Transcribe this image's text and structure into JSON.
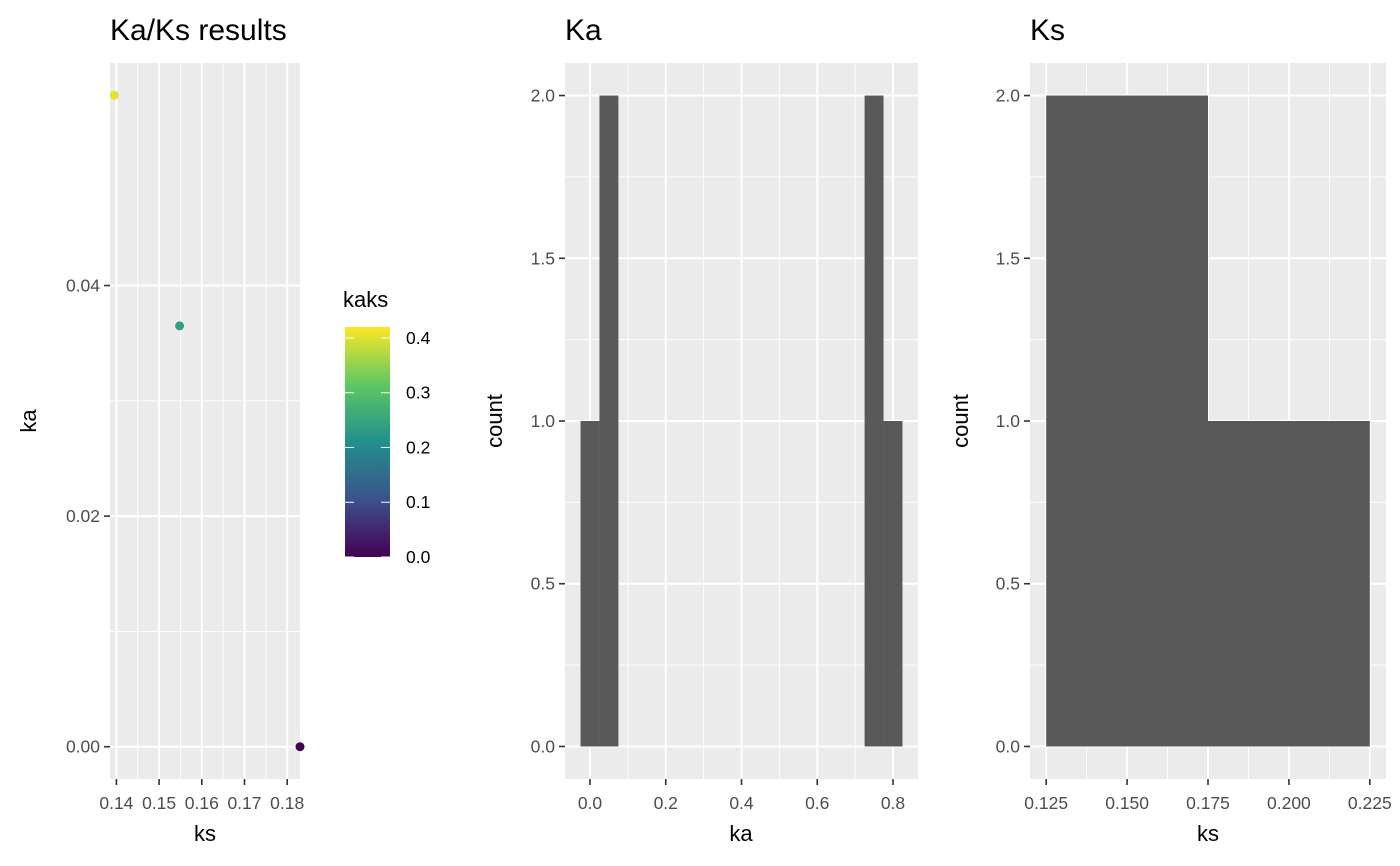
{
  "colors": {
    "panel_bg": "#EBEBEB",
    "grid_major": "#FFFFFF",
    "tick": "#333333",
    "bar_fill": "#595959",
    "viridis": [
      "#440154",
      "#3B528B",
      "#21908C",
      "#5DC863",
      "#FDE725"
    ]
  },
  "chart_data": [
    {
      "type": "scatter",
      "title": "Ka/Ks results",
      "xlabel": "ks",
      "ylabel": "ka",
      "xlim": [
        0.1385,
        0.183
      ],
      "ylim": [
        -0.0028,
        0.0593
      ],
      "xticks": [
        0.14,
        0.15,
        0.16,
        0.17,
        0.18
      ],
      "xtick_labels": [
        "0.14",
        "0.15",
        "0.16",
        "0.17",
        "0.18"
      ],
      "yticks": [
        0.0,
        0.02,
        0.04
      ],
      "ytick_labels": [
        "0.00",
        "0.02",
        "0.04"
      ],
      "points": [
        {
          "x": 0.1395,
          "y": 0.0565,
          "kaks": 0.405
        },
        {
          "x": 0.1548,
          "y": 0.0365,
          "kaks": 0.236
        },
        {
          "x": 0.183,
          "y": 0.0,
          "kaks": 0.0
        }
      ],
      "legend": {
        "title": "kaks",
        "placement": "right",
        "range": [
          0,
          0.42
        ],
        "ticks": [
          0.0,
          0.1,
          0.2,
          0.3,
          0.4
        ],
        "tick_labels": [
          "0.0",
          "0.1",
          "0.2",
          "0.3",
          "0.4"
        ]
      }
    },
    {
      "type": "bar",
      "title": "Ka",
      "xlabel": "ka",
      "ylabel": "count",
      "xlim": [
        -0.066,
        0.866
      ],
      "ylim": [
        -0.1,
        2.1
      ],
      "xticks": [
        0.0,
        0.2,
        0.4,
        0.6,
        0.8
      ],
      "xtick_labels": [
        "0.0",
        "0.2",
        "0.4",
        "0.6",
        "0.8"
      ],
      "yticks": [
        0.0,
        0.5,
        1.0,
        1.5,
        2.0
      ],
      "ytick_labels": [
        "0.0",
        "0.5",
        "1.0",
        "1.5",
        "2.0"
      ],
      "bins": [
        {
          "x0": -0.025,
          "x1": 0.025,
          "count": 1
        },
        {
          "x0": 0.025,
          "x1": 0.075,
          "count": 2
        },
        {
          "x0": 0.725,
          "x1": 0.775,
          "count": 2
        },
        {
          "x0": 0.775,
          "x1": 0.825,
          "count": 1
        }
      ]
    },
    {
      "type": "bar",
      "title": "Ks",
      "xlabel": "ks",
      "ylabel": "count",
      "xlim": [
        0.12,
        0.23
      ],
      "ylim": [
        -0.1,
        2.1
      ],
      "xticks": [
        0.125,
        0.15,
        0.175,
        0.2,
        0.225
      ],
      "xtick_labels": [
        "0.125",
        "0.150",
        "0.175",
        "0.200",
        "0.225"
      ],
      "yticks": [
        0.0,
        0.5,
        1.0,
        1.5,
        2.0
      ],
      "ytick_labels": [
        "0.0",
        "0.5",
        "1.0",
        "1.5",
        "2.0"
      ],
      "bins": [
        {
          "x0": 0.125,
          "x1": 0.175,
          "count": 2
        },
        {
          "x0": 0.175,
          "x1": 0.225,
          "count": 1
        }
      ]
    }
  ]
}
